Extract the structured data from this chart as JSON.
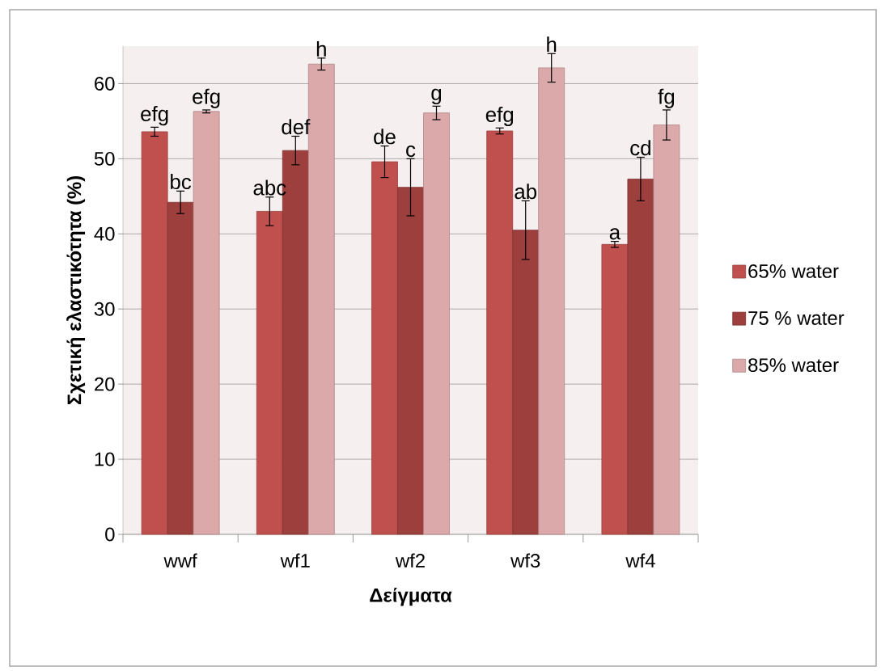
{
  "chart_data": {
    "type": "bar",
    "xlabel": "Δείγματα",
    "ylabel": "Σχετική ελαστικότητα (%)",
    "categories": [
      "wwf",
      "wf1",
      "wf2",
      "wf3",
      "wf4"
    ],
    "series": [
      {
        "name": "65% water",
        "color": "#c0504d",
        "values": [
          53.6,
          43.0,
          49.6,
          53.7,
          38.6
        ],
        "errors": [
          0.6,
          1.9,
          2.1,
          0.4,
          0.4
        ],
        "value_labels": [
          "efg",
          "abc",
          "de",
          "efg",
          "a"
        ]
      },
      {
        "name": "75 % water",
        "color": "#9c3f3d",
        "values": [
          44.2,
          51.1,
          46.2,
          40.5,
          47.3
        ],
        "errors": [
          1.5,
          1.9,
          3.8,
          3.9,
          2.9
        ],
        "value_labels": [
          "bc",
          "def",
          "c",
          "ab",
          "cd"
        ]
      },
      {
        "name": "85% water",
        "color": "#dba9a9",
        "values": [
          56.3,
          62.6,
          56.1,
          62.1,
          54.5
        ],
        "errors": [
          0.2,
          0.8,
          0.9,
          1.9,
          2.0
        ],
        "value_labels": [
          "efg",
          "h",
          "g",
          "h",
          "fg"
        ]
      }
    ],
    "ylim": [
      0,
      65
    ],
    "yticks": [
      0,
      10,
      20,
      30,
      40,
      50,
      60
    ],
    "grid": "y",
    "legend": "right"
  }
}
